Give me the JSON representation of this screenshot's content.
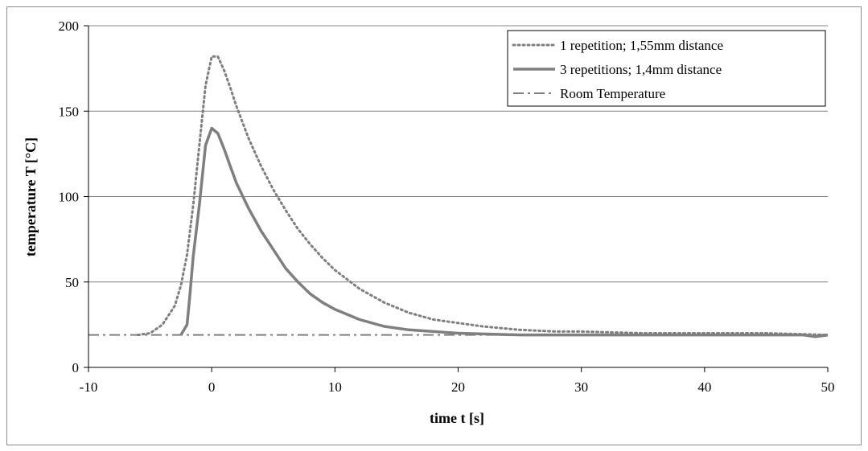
{
  "chart_data": {
    "type": "line",
    "title": "",
    "xlabel": "time t [s]",
    "ylabel": "temperature T [°C]",
    "xlim": [
      -10,
      50
    ],
    "ylim": [
      0,
      200
    ],
    "xticks": [
      -10,
      0,
      10,
      20,
      30,
      40,
      50
    ],
    "yticks": [
      0,
      50,
      100,
      150,
      200
    ],
    "grid": "horizontal",
    "legend_position": "top-right",
    "series": [
      {
        "name": "1 repetition; 1,55mm distance",
        "style": "dotted",
        "color": "#7f7f7f",
        "x": [
          -6,
          -5,
          -4,
          -3,
          -2.5,
          -2,
          -1.5,
          -1,
          -0.5,
          0,
          0.5,
          1,
          1.5,
          2,
          3,
          4,
          5,
          6,
          7,
          8,
          9,
          10,
          12,
          14,
          16,
          18,
          20,
          22,
          25,
          28,
          30,
          35,
          40,
          45,
          50
        ],
        "y": [
          19,
          20,
          25,
          36,
          48,
          66,
          95,
          130,
          165,
          182,
          182,
          174,
          164,
          153,
          134,
          118,
          104,
          92,
          81,
          72,
          64,
          57,
          46,
          38,
          32,
          28,
          26,
          24,
          22,
          21,
          21,
          20,
          20,
          20,
          19
        ]
      },
      {
        "name": "3 repetitions; 1,4mm distance",
        "style": "solid",
        "color": "#7f7f7f",
        "x": [
          -2.5,
          -2,
          -1.8,
          -1.5,
          -1,
          -0.5,
          0,
          0.5,
          1,
          1.5,
          2,
          3,
          4,
          5,
          6,
          7,
          8,
          9,
          10,
          12,
          14,
          16,
          18,
          20,
          25,
          30,
          40,
          48,
          49,
          50
        ],
        "y": [
          19,
          25,
          40,
          65,
          95,
          130,
          140,
          137,
          128,
          118,
          108,
          93,
          80,
          69,
          58,
          50,
          43,
          38,
          34,
          28,
          24,
          22,
          21,
          20,
          19,
          19,
          19,
          19,
          18,
          19
        ]
      },
      {
        "name": "Room Temperature",
        "style": "dash-dot",
        "color": "#7f7f7f",
        "x": [
          -10,
          50
        ],
        "y": [
          19,
          19
        ]
      }
    ]
  }
}
